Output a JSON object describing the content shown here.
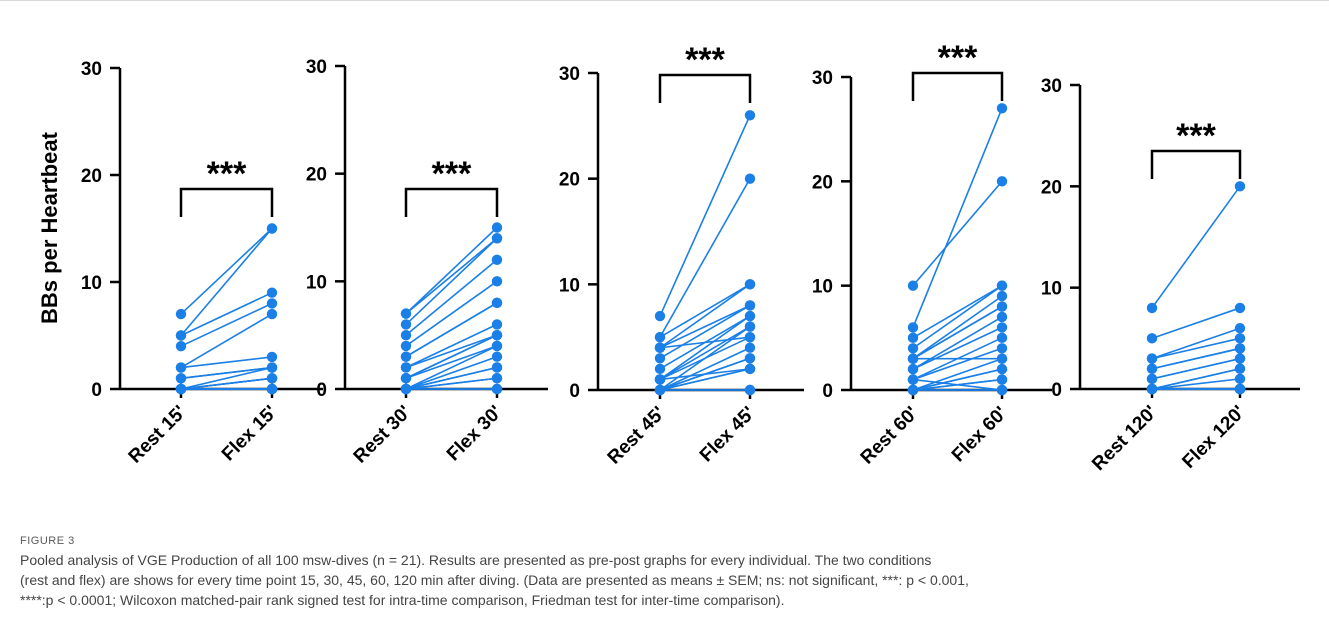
{
  "chart_data": {
    "type": "line",
    "ylabel": "BBs per Heartbeat",
    "accent_color": "#1a7fe6",
    "panels": [
      {
        "categories": [
          "Rest 15'",
          "Flex 15'"
        ],
        "significance": "***",
        "yticks": [
          "0",
          "10",
          "20",
          "30"
        ],
        "ylim": [
          0,
          30
        ],
        "pairs": [
          [
            7,
            15
          ],
          [
            5,
            15
          ],
          [
            5,
            9
          ],
          [
            4,
            8
          ],
          [
            2,
            7
          ],
          [
            2,
            3
          ],
          [
            1,
            2
          ],
          [
            1,
            2
          ],
          [
            0,
            1
          ],
          [
            0,
            2
          ],
          [
            0,
            0
          ],
          [
            0,
            1
          ],
          [
            0,
            0
          ],
          [
            0,
            0
          ],
          [
            0,
            1
          ],
          [
            0,
            0
          ],
          [
            0,
            0
          ],
          [
            0,
            0
          ],
          [
            0,
            0
          ],
          [
            0,
            0
          ],
          [
            0,
            0
          ]
        ]
      },
      {
        "categories": [
          "Rest 30'",
          "Flex 30'"
        ],
        "significance": "***",
        "yticks": [
          "0",
          "10",
          "20",
          "30"
        ],
        "ylim": [
          0,
          30
        ],
        "pairs": [
          [
            7,
            15
          ],
          [
            7,
            14
          ],
          [
            6,
            14
          ],
          [
            5,
            12
          ],
          [
            4,
            10
          ],
          [
            3,
            8
          ],
          [
            3,
            8
          ],
          [
            2,
            6
          ],
          [
            2,
            5
          ],
          [
            1,
            5
          ],
          [
            1,
            4
          ],
          [
            0,
            4
          ],
          [
            0,
            3
          ],
          [
            0,
            2
          ],
          [
            0,
            2
          ],
          [
            0,
            1
          ],
          [
            0,
            1
          ],
          [
            0,
            0
          ],
          [
            0,
            0
          ],
          [
            0,
            0
          ],
          [
            1,
            5
          ]
        ]
      },
      {
        "categories": [
          "Rest 45'",
          "Flex 45'"
        ],
        "significance": "***",
        "yticks": [
          "0",
          "10",
          "20",
          "30"
        ],
        "ylim": [
          0,
          30
        ],
        "pairs": [
          [
            7,
            26
          ],
          [
            5,
            20
          ],
          [
            5,
            10
          ],
          [
            4,
            10
          ],
          [
            4,
            8
          ],
          [
            3,
            8
          ],
          [
            2,
            7
          ],
          [
            1,
            7
          ],
          [
            1,
            6
          ],
          [
            1,
            5
          ],
          [
            0,
            4
          ],
          [
            0,
            3
          ],
          [
            0,
            2
          ],
          [
            0,
            2
          ],
          [
            0,
            0
          ],
          [
            0,
            0
          ],
          [
            0,
            6
          ],
          [
            4,
            5
          ],
          [
            0,
            3
          ],
          [
            1,
            2
          ],
          [
            0,
            0
          ]
        ]
      },
      {
        "categories": [
          "Rest 60'",
          "Flex 60'"
        ],
        "significance": "***",
        "yticks": [
          "0",
          "10",
          "20",
          "30"
        ],
        "ylim": [
          0,
          30
        ],
        "pairs": [
          [
            10,
            20
          ],
          [
            6,
            27
          ],
          [
            5,
            10
          ],
          [
            4,
            10
          ],
          [
            3,
            9
          ],
          [
            3,
            8
          ],
          [
            3,
            8
          ],
          [
            2,
            7
          ],
          [
            2,
            6
          ],
          [
            1,
            5
          ],
          [
            1,
            4
          ],
          [
            0,
            3
          ],
          [
            0,
            2
          ],
          [
            0,
            2
          ],
          [
            0,
            1
          ],
          [
            0,
            0
          ],
          [
            0,
            0
          ],
          [
            3,
            3
          ],
          [
            0,
            1
          ],
          [
            1,
            0
          ],
          [
            0,
            0
          ]
        ]
      },
      {
        "categories": [
          "Rest 120'",
          "Flex 120'"
        ],
        "significance": "***",
        "yticks": [
          "0",
          "10",
          "20",
          "30"
        ],
        "ylim": [
          0,
          30
        ],
        "pairs": [
          [
            8,
            20
          ],
          [
            5,
            8
          ],
          [
            3,
            6
          ],
          [
            3,
            5
          ],
          [
            2,
            4
          ],
          [
            2,
            4
          ],
          [
            1,
            3
          ],
          [
            1,
            3
          ],
          [
            0,
            2
          ],
          [
            0,
            2
          ],
          [
            0,
            1
          ],
          [
            0,
            0
          ],
          [
            0,
            0
          ],
          [
            0,
            0
          ],
          [
            0,
            0
          ],
          [
            0,
            0
          ],
          [
            0,
            0
          ],
          [
            0,
            0
          ],
          [
            0,
            0
          ],
          [
            0,
            0
          ],
          [
            0,
            0
          ]
        ]
      }
    ]
  },
  "caption": {
    "label": "FIGURE 3",
    "line1": "Pooled analysis of VGE Production of all 100 msw-dives (n = 21). Results are presented as pre-post graphs for every individual. The two conditions",
    "line2": "(rest and flex) are shows for every time point 15, 30, 45, 60, 120 min after diving. (Data are presented as means ± SEM; ns: not significant, ***: p < 0.001,",
    "line3": "****:p < 0.0001; Wilcoxon matched-pair rank signed test for intra-time comparison, Friedman test for inter-time comparison)."
  }
}
